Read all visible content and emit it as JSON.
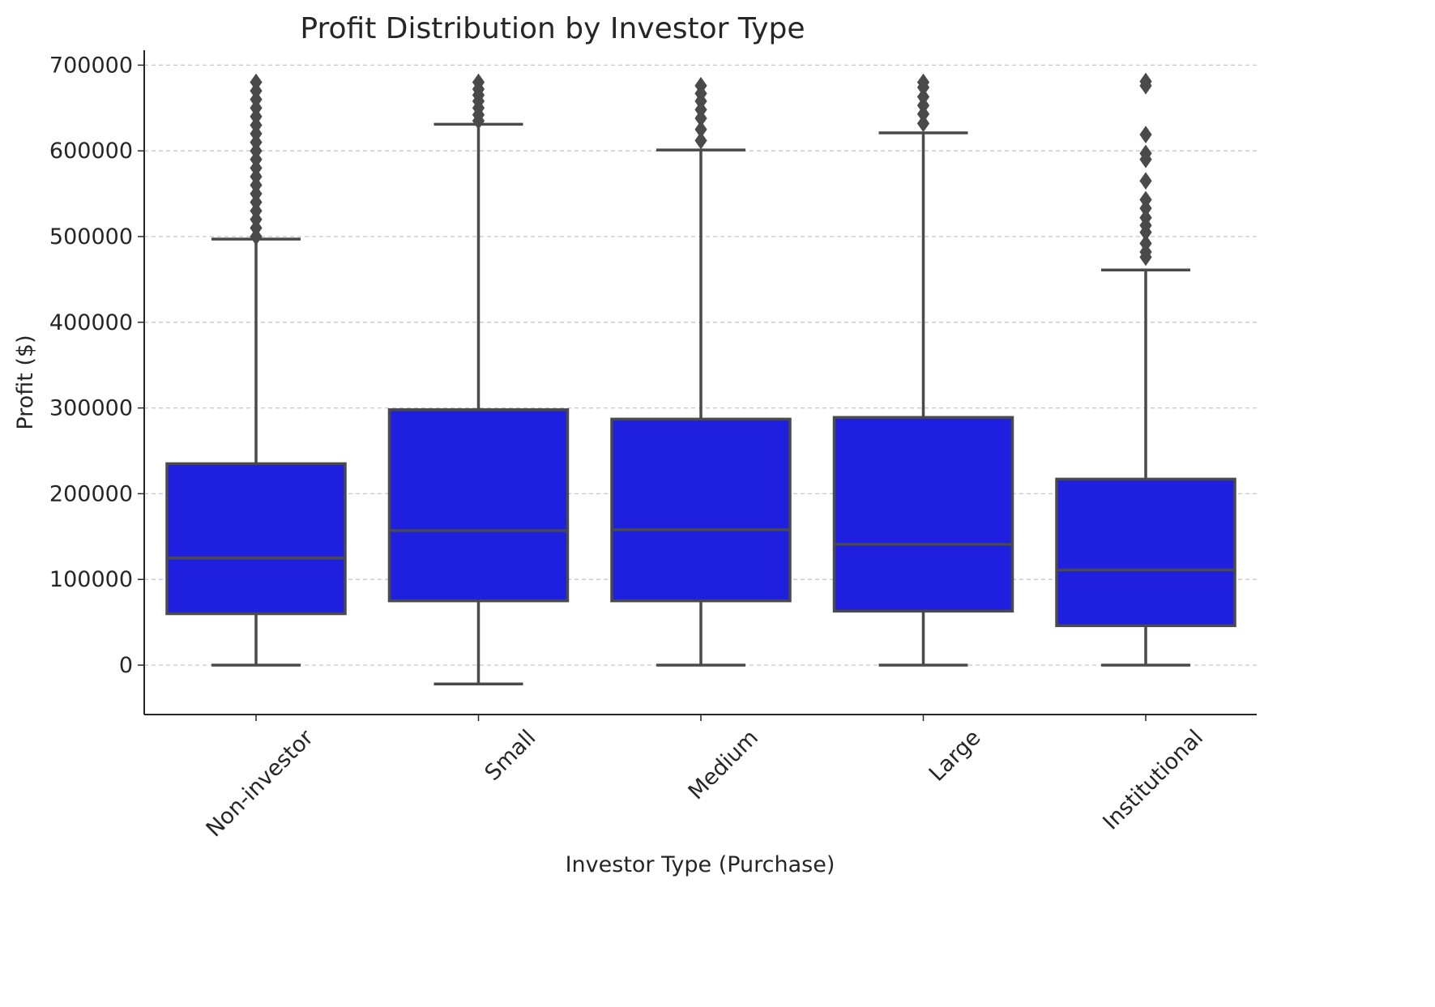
{
  "chart_data": {
    "type": "box",
    "title": "Profit Distribution by Investor Type",
    "xlabel": "Investor Type (Purchase)",
    "ylabel": "Profit ($)",
    "ylim": [
      -57000,
      718000
    ],
    "yticks": [
      0,
      100000,
      200000,
      300000,
      400000,
      500000,
      600000,
      700000
    ],
    "grid": "horizontal dashed",
    "box_color": "#1f1fe0",
    "line_color": "#4a4a4a",
    "categories": [
      "Non-investor",
      "Small",
      "Medium",
      "Large",
      "Institutional"
    ],
    "boxes": [
      {
        "category": "Non-investor",
        "whisker_low": 0,
        "q1": 60000,
        "median": 125000,
        "q3": 235000,
        "whisker_high": 497000,
        "outliers": [
          500000,
          510000,
          520000,
          530000,
          540000,
          550000,
          560000,
          570000,
          580000,
          590000,
          600000,
          610000,
          620000,
          630000,
          640000,
          650000,
          660000,
          670000,
          680000
        ]
      },
      {
        "category": "Small",
        "whisker_low": -22000,
        "q1": 75000,
        "median": 157000,
        "q3": 298000,
        "whisker_high": 631000,
        "outliers": [
          635000,
          642000,
          650000,
          658000,
          665000,
          672000,
          680000
        ]
      },
      {
        "category": "Medium",
        "whisker_low": 0,
        "q1": 75000,
        "median": 158000,
        "q3": 287000,
        "whisker_high": 601000,
        "outliers": [
          612000,
          625000,
          638000,
          648000,
          658000,
          667000,
          676000
        ]
      },
      {
        "category": "Large",
        "whisker_low": 0,
        "q1": 63000,
        "median": 141000,
        "q3": 289000,
        "whisker_high": 621000,
        "outliers": [
          632000,
          643000,
          653000,
          663000,
          674000,
          680000
        ]
      },
      {
        "category": "Institutional",
        "whisker_low": 0,
        "q1": 46000,
        "median": 111000,
        "q3": 217000,
        "whisker_high": 461000,
        "outliers": [
          476000,
          482000,
          492000,
          505000,
          513000,
          522000,
          533000,
          543000,
          565000,
          590000,
          597000,
          619000,
          676000,
          681000
        ]
      }
    ]
  }
}
